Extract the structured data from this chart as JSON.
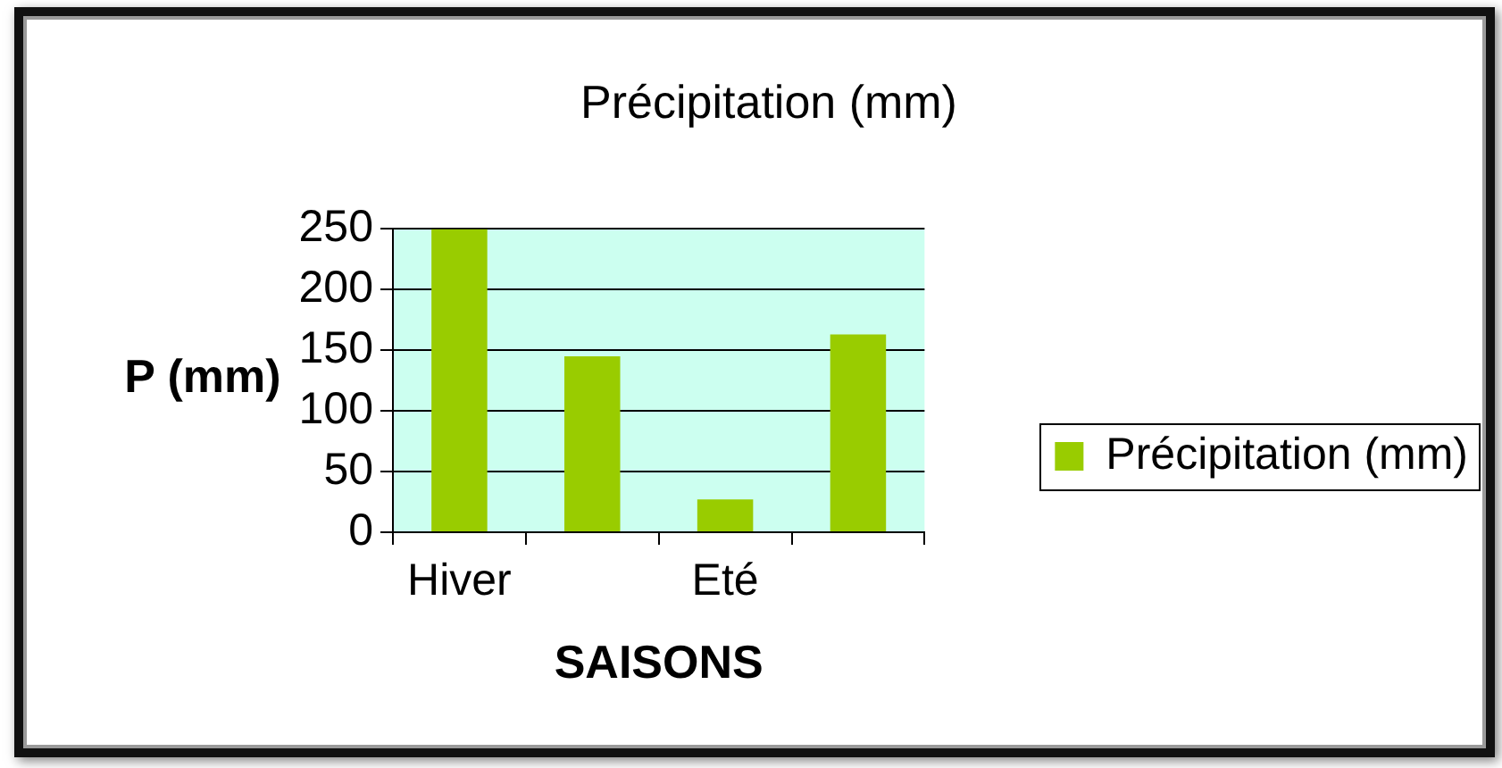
{
  "chart_data": {
    "type": "bar",
    "title": "Précipitation (mm)",
    "xlabel": "SAISONS",
    "ylabel": "P (mm)",
    "categories": [
      "Hiver",
      null,
      "Eté",
      null
    ],
    "series": [
      {
        "name": "Précipitation (mm)",
        "color": "#99cc00",
        "values": [
          250,
          145,
          27,
          163
        ]
      }
    ],
    "ylim": [
      0,
      250
    ],
    "yticks": [
      0,
      50,
      100,
      150,
      200,
      250
    ],
    "grid": "y",
    "legend": "right"
  }
}
